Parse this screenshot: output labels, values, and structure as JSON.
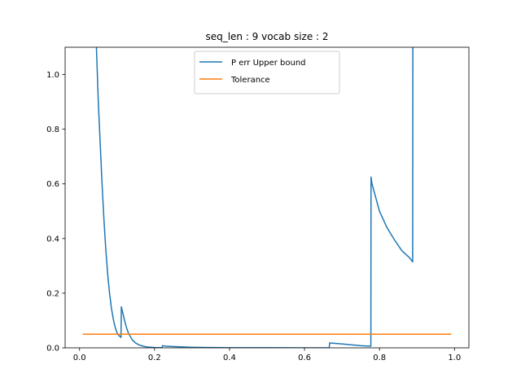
{
  "chart_data": {
    "type": "line",
    "title": "seq_len : 9 vocab size : 2",
    "xlabel": "",
    "ylabel": "",
    "xlim": [
      -0.0385,
      1.0385
    ],
    "ylim": [
      0.0,
      1.1
    ],
    "xticks": [
      0.0,
      0.2,
      0.4,
      0.6,
      0.8,
      1.0
    ],
    "xtick_labels": [
      "0.0",
      "0.2",
      "0.4",
      "0.6",
      "0.8",
      "1.0"
    ],
    "yticks": [
      0.0,
      0.2,
      0.4,
      0.6,
      0.8,
      1.0
    ],
    "ytick_labels": [
      "0.0",
      "0.2",
      "0.4",
      "0.6",
      "0.8",
      "1.0"
    ],
    "grid": false,
    "legend_position": "upper center",
    "series": [
      {
        "name": "P err Upper bound",
        "color": "#1f77b4",
        "x": [
          0.045,
          0.05,
          0.055,
          0.06,
          0.065,
          0.07,
          0.075,
          0.08,
          0.085,
          0.09,
          0.095,
          0.1,
          0.105,
          0.1105,
          0.1115,
          0.115,
          0.12,
          0.125,
          0.13,
          0.14,
          0.15,
          0.16,
          0.17,
          0.18,
          0.2,
          0.22,
          0.2215,
          0.23,
          0.26,
          0.3,
          0.35,
          0.4,
          0.5,
          0.6,
          0.666,
          0.667,
          0.7,
          0.75,
          0.777,
          0.7775,
          0.78,
          0.8,
          0.82,
          0.84,
          0.86,
          0.88,
          0.888,
          0.8885,
          0.889
        ],
        "y": [
          1.1,
          0.9,
          0.75,
          0.6,
          0.47,
          0.36,
          0.27,
          0.2,
          0.145,
          0.105,
          0.075,
          0.055,
          0.045,
          0.038,
          0.15,
          0.13,
          0.1,
          0.075,
          0.055,
          0.03,
          0.017,
          0.01,
          0.006,
          0.003,
          0.001,
          0.0005,
          0.008,
          0.006,
          0.004,
          0.002,
          0.001,
          0.0005,
          0.0002,
          0.0001,
          0.0001,
          0.018,
          0.014,
          0.008,
          0.006,
          0.625,
          0.6,
          0.5,
          0.44,
          0.395,
          0.355,
          0.33,
          0.315,
          0.315,
          1.1
        ]
      },
      {
        "name": "Tolerance",
        "color": "#ff7f0e",
        "x": [
          0.01,
          0.99
        ],
        "y": [
          0.05,
          0.05
        ]
      }
    ]
  }
}
